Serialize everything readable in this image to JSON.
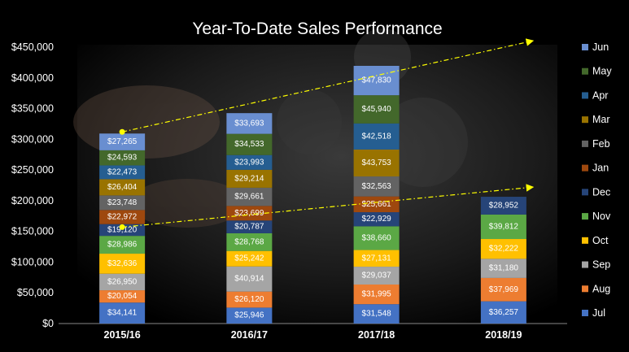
{
  "chart_data": {
    "type": "bar",
    "stacked": true,
    "title": "Year-To-Date Sales Performance",
    "xlabel": "",
    "ylabel": "",
    "categories": [
      "2015/16",
      "2016/17",
      "2017/18",
      "2018/19"
    ],
    "ylim": [
      0,
      450000
    ],
    "yticks": [
      "$0",
      "$50,000",
      "$100,000",
      "$150,000",
      "$200,000",
      "$250,000",
      "$300,000",
      "$350,000",
      "$400,000",
      "$450,000"
    ],
    "grid": false,
    "legend_position": "right",
    "series": [
      {
        "name": "Jul",
        "color": "#4472C4",
        "values": [
          34141,
          25946,
          31548,
          36257
        ],
        "labels": [
          "$34,141",
          "$25,946",
          "$31,548",
          "$36,257"
        ]
      },
      {
        "name": "Aug",
        "color": "#ED7D31",
        "values": [
          20054,
          26120,
          31995,
          37969
        ],
        "labels": [
          "$20,054",
          "$26,120",
          "$31,995",
          "$37,969"
        ]
      },
      {
        "name": "Sep",
        "color": "#A5A5A5",
        "values": [
          26950,
          40914,
          29037,
          31180
        ],
        "labels": [
          "$26,950",
          "$40,914",
          "$29,037",
          "$31,180"
        ]
      },
      {
        "name": "Oct",
        "color": "#FFC000",
        "values": [
          32636,
          25242,
          27131,
          32222
        ],
        "labels": [
          "$32,636",
          "$25,242",
          "$27,131",
          "$32,222"
        ]
      },
      {
        "name": "Nov",
        "color": "#5BA845",
        "values": [
          28986,
          28768,
          38660,
          39812
        ],
        "labels": [
          "$28,986",
          "$28,768",
          "$38,660",
          "$39,812"
        ]
      },
      {
        "name": "Dec",
        "color": "#264478",
        "values": [
          19120,
          20787,
          22929,
          28952
        ],
        "labels": [
          "$19,120",
          "$20,787",
          "$22,929",
          "$28,952"
        ]
      },
      {
        "name": "Jan",
        "color": "#9E480E",
        "values": [
          22972,
          23699,
          25661,
          null
        ],
        "labels": [
          "$22,972",
          "$23,699",
          "$25,661",
          ""
        ]
      },
      {
        "name": "Feb",
        "color": "#636363",
        "values": [
          23748,
          29661,
          32563,
          null
        ],
        "labels": [
          "$23,748",
          "$29,661",
          "$32,563",
          ""
        ]
      },
      {
        "name": "Mar",
        "color": "#997300",
        "values": [
          26404,
          29214,
          43753,
          null
        ],
        "labels": [
          "$26,404",
          "$29,214",
          "$43,753",
          ""
        ]
      },
      {
        "name": "Apr",
        "color": "#255E91",
        "values": [
          22473,
          23993,
          42518,
          null
        ],
        "labels": [
          "$22,473",
          "$23,993",
          "$42,518",
          ""
        ]
      },
      {
        "name": "May",
        "color": "#43682B",
        "values": [
          24593,
          34533,
          45940,
          null
        ],
        "labels": [
          "$24,593",
          "$34,533",
          "$45,940",
          ""
        ]
      },
      {
        "name": "Jun",
        "color": "#698ED0",
        "values": [
          27265,
          33693,
          47830,
          null
        ],
        "labels": [
          "$27,265",
          "$33,693",
          "$47,830",
          ""
        ]
      }
    ],
    "trend_lines": [
      {
        "color": "#FFFF00",
        "from": {
          "category": "2015/16",
          "y": 312000
        },
        "to": {
          "category": "2018/19",
          "y": 460000
        }
      },
      {
        "color": "#FFFF00",
        "from": {
          "category": "2015/16",
          "y": 157000
        },
        "to": {
          "category": "2018/19",
          "y": 222000
        }
      }
    ]
  }
}
